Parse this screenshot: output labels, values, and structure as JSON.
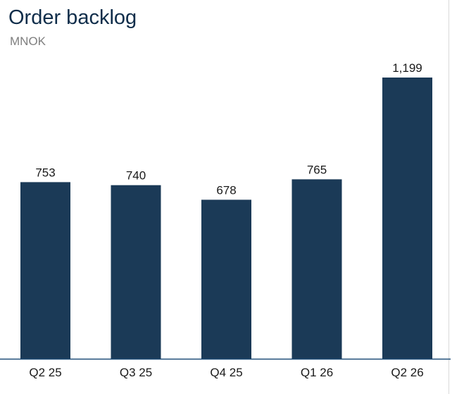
{
  "title": "Order backlog",
  "subtitle": "MNOK",
  "colors": {
    "bar": "#1b3a57",
    "axis": "#1f4e79",
    "title": "#0f2d4a",
    "subtitle": "#7f7f7f"
  },
  "chart_data": {
    "type": "bar",
    "title": "Order backlog",
    "subtitle": "MNOK",
    "categories": [
      "Q2 25",
      "Q3 25",
      "Q4 25",
      "Q1 26",
      "Q2 26"
    ],
    "values": [
      753,
      740,
      678,
      765,
      1199
    ],
    "value_labels": [
      "753",
      "740",
      "678",
      "765",
      "1,199"
    ],
    "xlabel": "",
    "ylabel": "",
    "ylim": [
      0,
      1199
    ],
    "grid": false,
    "legend": "none"
  }
}
